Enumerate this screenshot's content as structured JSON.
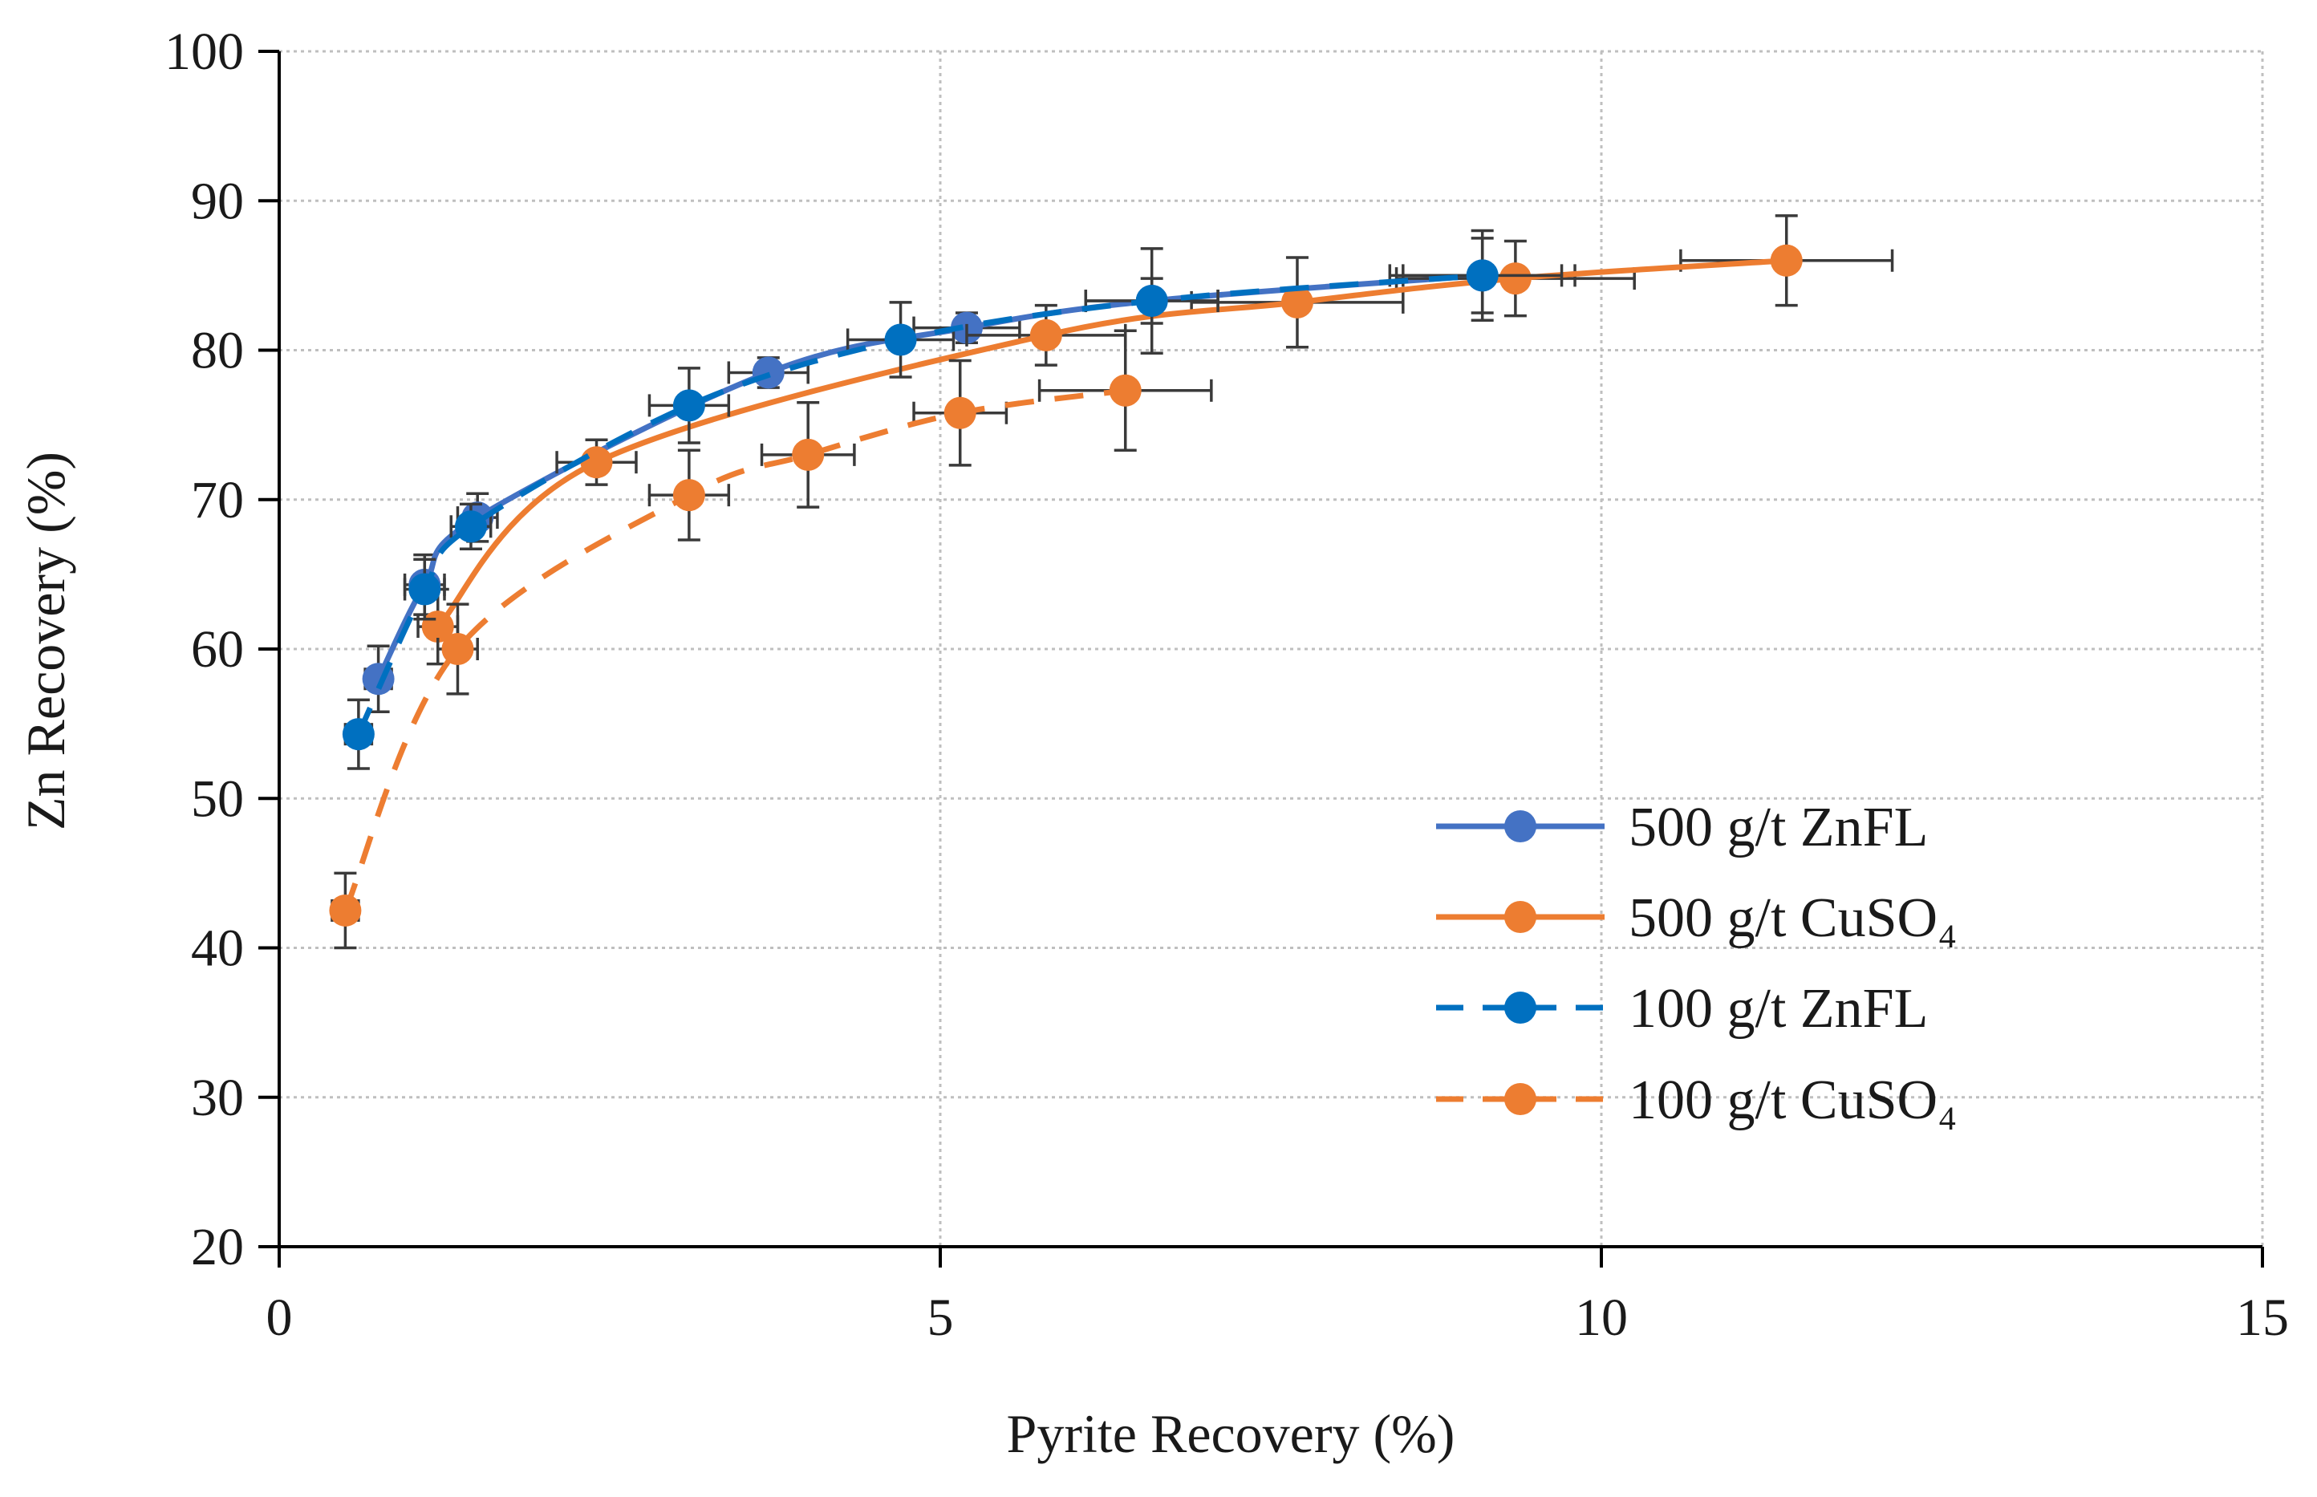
{
  "chart_data": {
    "type": "line",
    "xlabel": "Pyrite Recovery (%)",
    "ylabel": "Zn Recovery (%)",
    "xlim": [
      0,
      15
    ],
    "ylim": [
      20,
      100
    ],
    "x_ticks": [
      "0",
      "5",
      "10",
      "15"
    ],
    "y_ticks": [
      "20",
      "30",
      "40",
      "50",
      "60",
      "70",
      "80",
      "90",
      "100"
    ],
    "grid": true,
    "legend_position": "bottom-right",
    "error_bars": true,
    "series": [
      {
        "name": "500 g/t ZnFL",
        "color": "#4472C4",
        "line_style": "solid",
        "marker": "circle",
        "points": [
          {
            "x": 0.75,
            "y": 58.0,
            "xerr": 0.1,
            "yerr": 2.2
          },
          {
            "x": 1.1,
            "y": 64.3,
            "xerr": 0.15,
            "yerr": 2.0
          },
          {
            "x": 1.5,
            "y": 68.8,
            "xerr": 0.15,
            "yerr": 1.6
          },
          {
            "x": 3.7,
            "y": 78.5,
            "xerr": 0.3,
            "yerr": 1.0
          },
          {
            "x": 5.2,
            "y": 81.5,
            "xerr": 0.4,
            "yerr": 1.0
          },
          {
            "x": 6.6,
            "y": 83.3,
            "xerr": 0.5,
            "yerr": 1.5
          },
          {
            "x": 9.1,
            "y": 85.0,
            "xerr": 0.7,
            "yerr": 2.5
          }
        ]
      },
      {
        "name": "500 g/t CuSO₄",
        "color": "#ED7D31",
        "line_style": "solid",
        "marker": "circle",
        "points": [
          {
            "x": 1.2,
            "y": 61.5,
            "xerr": 0.15,
            "yerr": 2.5
          },
          {
            "x": 2.4,
            "y": 72.5,
            "xerr": 0.3,
            "yerr": 1.5
          },
          {
            "x": 5.8,
            "y": 81.0,
            "xerr": 0.6,
            "yerr": 2.0
          },
          {
            "x": 7.7,
            "y": 83.2,
            "xerr": 0.8,
            "yerr": 3.0
          },
          {
            "x": 9.35,
            "y": 84.8,
            "xerr": 0.9,
            "yerr": 2.5
          },
          {
            "x": 11.4,
            "y": 86.0,
            "xerr": 0.8,
            "yerr": 3.0
          }
        ]
      },
      {
        "name": "100 g/t ZnFL",
        "color": "#0070C0",
        "line_style": "dashed",
        "marker": "circle",
        "points": [
          {
            "x": 0.6,
            "y": 54.3,
            "xerr": 0.1,
            "yerr": 2.3
          },
          {
            "x": 1.1,
            "y": 64.0,
            "xerr": 0.15,
            "yerr": 2.0
          },
          {
            "x": 1.45,
            "y": 68.2,
            "xerr": 0.15,
            "yerr": 1.5
          },
          {
            "x": 3.1,
            "y": 76.3,
            "xerr": 0.3,
            "yerr": 2.5
          },
          {
            "x": 4.7,
            "y": 80.7,
            "xerr": 0.4,
            "yerr": 2.5
          },
          {
            "x": 6.6,
            "y": 83.3,
            "xerr": 0.5,
            "yerr": 3.5
          },
          {
            "x": 9.1,
            "y": 85.0,
            "xerr": 0.6,
            "yerr": 3.0
          }
        ]
      },
      {
        "name": "100 g/t CuSO₄",
        "color": "#ED7D31",
        "line_style": "dashed",
        "marker": "circle",
        "points": [
          {
            "x": 0.5,
            "y": 42.5,
            "xerr": 0.1,
            "yerr": 2.5
          },
          {
            "x": 1.35,
            "y": 60.0,
            "xerr": 0.15,
            "yerr": 3.0
          },
          {
            "x": 3.1,
            "y": 70.3,
            "xerr": 0.3,
            "yerr": 3.0
          },
          {
            "x": 4.0,
            "y": 73.0,
            "xerr": 0.35,
            "yerr": 3.5
          },
          {
            "x": 5.15,
            "y": 75.8,
            "xerr": 0.35,
            "yerr": 3.5
          },
          {
            "x": 6.4,
            "y": 77.3,
            "xerr": 0.65,
            "yerr": 4.0
          }
        ]
      }
    ]
  }
}
